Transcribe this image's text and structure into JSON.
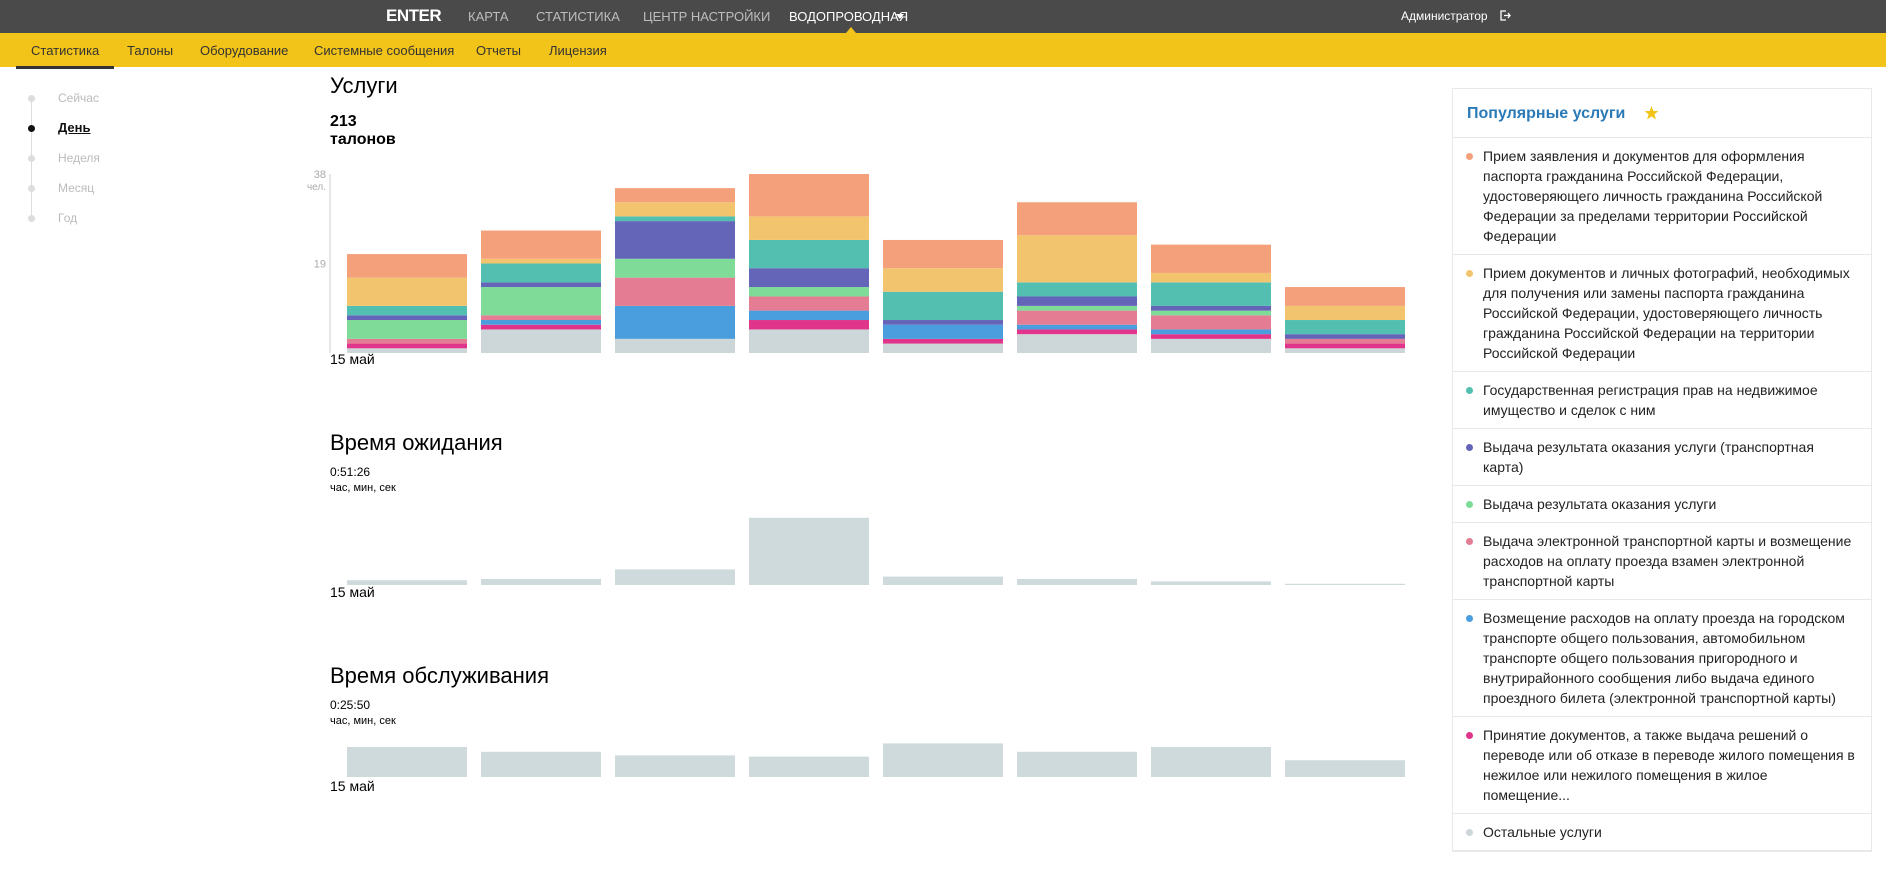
{
  "header": {
    "logo": "ENTER",
    "menu": [
      "КАРТА",
      "СТАТИСТИКА",
      "ЦЕНТР НАСТРОЙКИ",
      "ВОДОПРОВОДНАЯ"
    ],
    "user": "Администратор"
  },
  "subnav": [
    "Статистика",
    "Талоны",
    "Оборудование",
    "Системные сообщения",
    "Отчеты",
    "Лицензия"
  ],
  "timeline": [
    "Сейчас",
    "День",
    "Неделя",
    "Месяц",
    "Год"
  ],
  "popular_title": "Популярные услуги",
  "chart_data": [
    {
      "type": "stacked-bar",
      "title": "Услуги",
      "summary": "213",
      "summary_unit": "талонов",
      "ylabel": "чел.",
      "categories": [
        "15 май",
        null,
        null,
        null,
        null,
        null,
        null,
        null
      ],
      "ylim": [
        0,
        38
      ],
      "yticks": [
        19,
        38
      ],
      "series": [
        {
          "name": "Прием заявления и документов для оформления паспорта гражданина Российской Федерации, удостоверяющего личность гражданина Российской Федерации за пределами территории Российской Федерации",
          "color": "#f4a07a",
          "values": [
            5,
            6,
            3,
            9,
            6,
            7,
            6,
            4
          ]
        },
        {
          "name": "Прием документов и личных фотографий, необходимых для получения или замены паспорта гражданина Российской Федерации, удостоверяющего личность гражданина Российской Федерации на территории Российской Федерации",
          "color": "#f2c46e",
          "values": [
            6,
            1,
            3,
            5,
            5,
            10,
            2,
            3
          ]
        },
        {
          "name": "Государственная регистрация прав на недвижимое имущество и сделок с ним",
          "color": "#52bfb0",
          "values": [
            2,
            4,
            1,
            6,
            6,
            3,
            5,
            3
          ]
        },
        {
          "name": "Выдача результата оказания услуги (транспортная карта)",
          "color": "#6465b8",
          "values": [
            1,
            1,
            8,
            4,
            1,
            2,
            1,
            1
          ]
        },
        {
          "name": "Выдача результата оказания услуги",
          "color": "#7edc98",
          "values": [
            4,
            6,
            4,
            2,
            0,
            1,
            1,
            0
          ]
        },
        {
          "name": "Выдача электронной транспортной карты и возмещение расходов на оплату проезда взамен электронной транспортной карты",
          "color": "#e47d94",
          "values": [
            1,
            1,
            6,
            3,
            0,
            3,
            3,
            1
          ]
        },
        {
          "name": "Возмещение расходов на оплату проезда на городском транспорте общего пользования, автомобильном транспорте общего пользования пригородного и внутрирайонного сообщения либо выдача единого проездного билета (электронной транспортной карты)",
          "color": "#4a9ede",
          "values": [
            0,
            1,
            7,
            2,
            3,
            1,
            1,
            0
          ]
        },
        {
          "name": "Принятие документов, а также выдача решений о переводе или об отказе в переводе жилого помещения в нежилое или нежилого помещения в жилое помещение...",
          "color": "#e0358a",
          "values": [
            1,
            1,
            0,
            2,
            1,
            1,
            1,
            1
          ]
        },
        {
          "name": "Остальные услуги",
          "color": "#cdd6d8",
          "values": [
            1,
            5,
            3,
            5,
            2,
            4,
            3,
            1
          ]
        }
      ]
    },
    {
      "type": "bar",
      "title": "Время ожидания",
      "summary": "0:51:26",
      "summary_unit": "час, мин, сек",
      "categories": [
        "15 май",
        null,
        null,
        null,
        null,
        null,
        null,
        null
      ],
      "color": "#cfdadc",
      "values": [
        4,
        5,
        13,
        56,
        7,
        5,
        3,
        1
      ]
    },
    {
      "type": "bar",
      "title": "Время обслуживания",
      "summary": "0:25:50",
      "summary_unit": "час, мин, сек",
      "categories": [
        "15 май",
        null,
        null,
        null,
        null,
        null,
        null,
        null
      ],
      "color": "#cfdadc",
      "values": [
        25,
        21,
        18,
        17,
        28,
        21,
        25,
        14
      ]
    }
  ]
}
